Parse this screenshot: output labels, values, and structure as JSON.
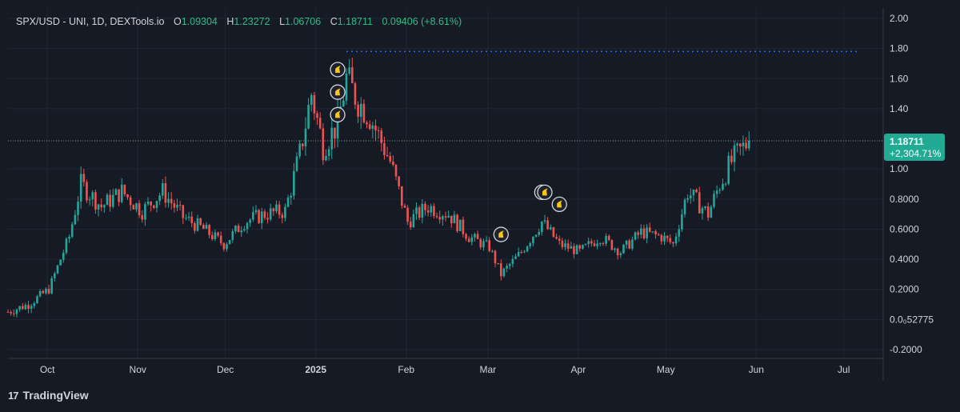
{
  "header": {
    "symbol": "SPX/USD - UNI, 1D, DEXTools.io",
    "open_label": "O",
    "open": "1.09304",
    "high_label": "H",
    "high": "1.23272",
    "low_label": "L",
    "low": "1.06706",
    "close_label": "C",
    "close": "1.18711",
    "change": "0.09406 (+8.61%)"
  },
  "footer": {
    "brand": "TradingView",
    "logo": "17"
  },
  "colors": {
    "up": "#26a69a",
    "down": "#ef5350",
    "background": "#161a25",
    "grid": "#232632",
    "dotted_line": "#2962ff",
    "marker": "#f5c518"
  },
  "price_label": {
    "value": "1.18711",
    "change": "+2,304.71%"
  },
  "chart_data": {
    "type": "candlestick",
    "title": "",
    "xlabel": "",
    "ylabel": "",
    "ylim": [
      -0.2,
      2.0
    ],
    "y_ticks": [
      "2.00",
      "1.80",
      "1.60",
      "1.40",
      "1.00",
      "0.8000",
      "0.6000",
      "0.4000",
      "0.2000",
      "0.0₀52775",
      "-0.2000"
    ],
    "y_tick_values": [
      2.0,
      1.8,
      1.6,
      1.4,
      1.0,
      0.8,
      0.6,
      0.4,
      0.2,
      0.0,
      -0.2
    ],
    "x_ticks": [
      "Oct",
      "Nov",
      "Dec",
      "2025",
      "Feb",
      "Mar",
      "Apr",
      "May",
      "Jun",
      "Jul"
    ],
    "x_tick_dates": [
      "2024-10-01",
      "2024-11-01",
      "2024-12-01",
      "2025-01-01",
      "2025-02-01",
      "2025-03-01",
      "2025-04-01",
      "2025-05-01",
      "2025-06-01",
      "2025-07-01"
    ],
    "x_range": [
      "2024-09-23",
      "2025-07-20"
    ],
    "horizontal_line": {
      "value": 1.78,
      "from": "2025-01-17",
      "to": "2025-07-12",
      "style": "dotted"
    },
    "current_price_line": 1.18711,
    "markers": [
      {
        "date": "2025-01-14",
        "value": 1.66
      },
      {
        "date": "2025-01-14",
        "value": 1.51
      },
      {
        "date": "2025-01-14",
        "value": 1.36
      },
      {
        "date": "2025-03-11",
        "value": 0.565
      },
      {
        "date": "2025-03-25",
        "value": 0.845
      },
      {
        "date": "2025-03-26",
        "value": 0.845
      },
      {
        "date": "2025-03-31",
        "value": 0.765
      }
    ],
    "close_path": [
      [
        "2024-09-23",
        0.05
      ],
      [
        "2024-09-30",
        0.1
      ],
      [
        "2024-10-07",
        0.2
      ],
      [
        "2024-10-14",
        0.55
      ],
      [
        "2024-10-18",
        0.9
      ],
      [
        "2024-10-25",
        0.75
      ],
      [
        "2024-11-01",
        0.85
      ],
      [
        "2024-11-08",
        0.72
      ],
      [
        "2024-11-15",
        0.85
      ],
      [
        "2024-11-22",
        0.68
      ],
      [
        "2024-11-29",
        0.6
      ],
      [
        "2024-12-06",
        0.5
      ],
      [
        "2024-12-13",
        0.65
      ],
      [
        "2024-12-20",
        0.7
      ],
      [
        "2024-12-27",
        0.72
      ],
      [
        "2025-01-01",
        1.1
      ],
      [
        "2025-01-05",
        1.5
      ],
      [
        "2025-01-09",
        1.15
      ],
      [
        "2025-01-14",
        1.3
      ],
      [
        "2025-01-17",
        1.6
      ],
      [
        "2025-01-21",
        1.45
      ],
      [
        "2025-01-25",
        1.35
      ],
      [
        "2025-02-01",
        1.05
      ],
      [
        "2025-02-07",
        0.65
      ],
      [
        "2025-02-14",
        0.75
      ],
      [
        "2025-02-21",
        0.7
      ],
      [
        "2025-02-28",
        0.55
      ],
      [
        "2025-03-07",
        0.48
      ],
      [
        "2025-03-11",
        0.3
      ],
      [
        "2025-03-18",
        0.45
      ],
      [
        "2025-03-25",
        0.65
      ],
      [
        "2025-03-31",
        0.5
      ],
      [
        "2025-04-07",
        0.45
      ],
      [
        "2025-04-14",
        0.55
      ],
      [
        "2025-04-21",
        0.45
      ],
      [
        "2025-04-28",
        0.58
      ],
      [
        "2025-05-05",
        0.55
      ],
      [
        "2025-05-09",
        0.5
      ],
      [
        "2025-05-14",
        0.85
      ],
      [
        "2025-05-21",
        0.7
      ],
      [
        "2025-05-25",
        0.9
      ],
      [
        "2025-05-29",
        1.05
      ],
      [
        "2025-06-04",
        1.18711
      ]
    ]
  }
}
